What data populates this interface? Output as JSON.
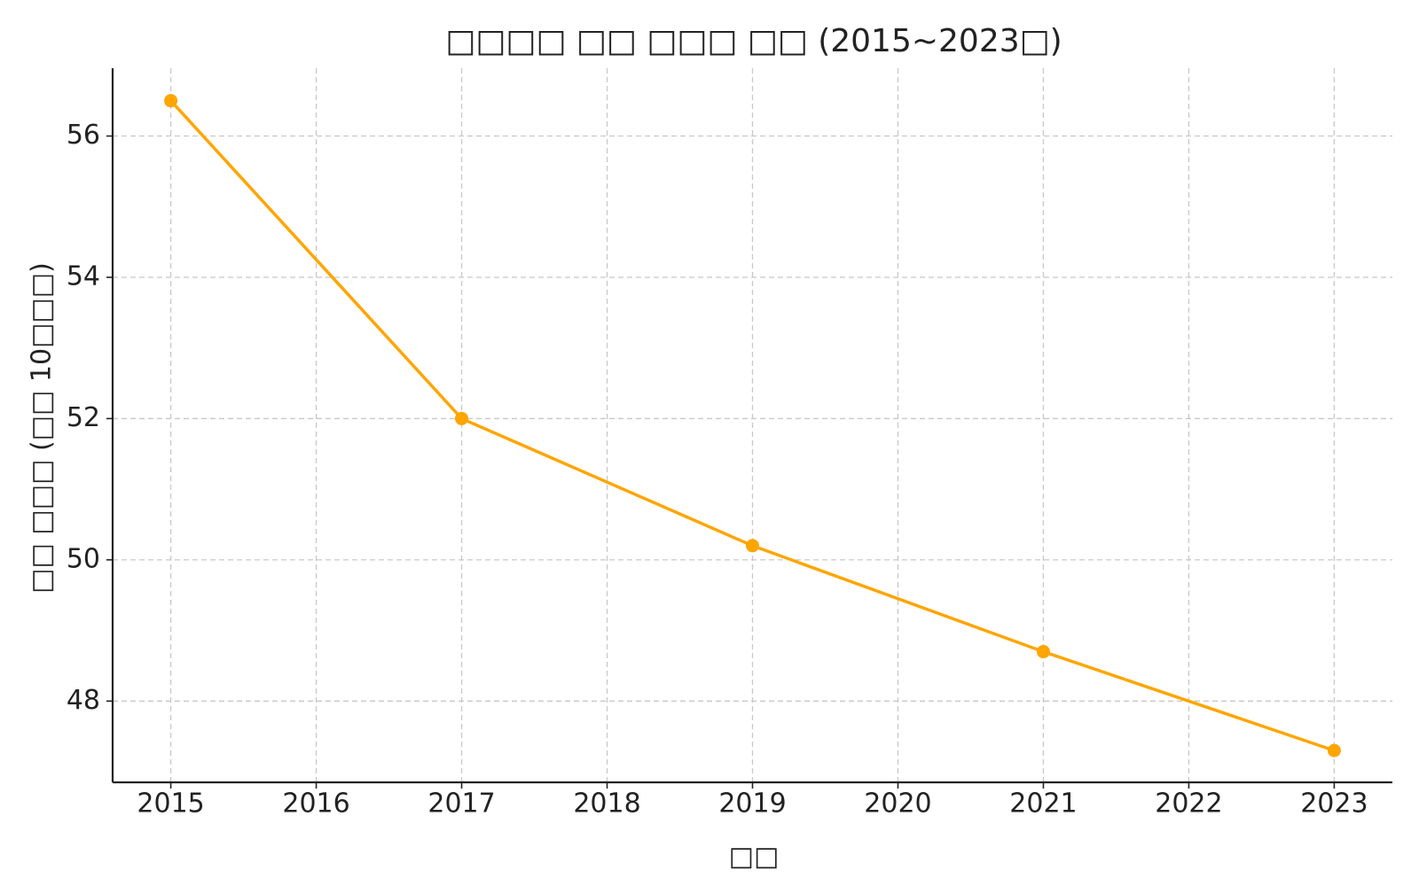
{
  "chart_data": {
    "type": "line",
    "title": "□□□□ □□ □□□ □□ (2015~2023□)",
    "x_label": "□□",
    "y_label": "□□ □□□ (□□ 10□□□)",
    "x": [
      2015,
      2017,
      2019,
      2021,
      2023
    ],
    "series": [
      {
        "name": "□□ □□□",
        "color": "#ffa500",
        "values": [
          56.5,
          52.0,
          50.2,
          48.7,
          47.3
        ]
      }
    ],
    "xlim": [
      2014.6,
      2023.4
    ],
    "xticks": [
      2015,
      2016,
      2017,
      2018,
      2019,
      2020,
      2021,
      2022,
      2023
    ],
    "ylim": [
      46.85,
      56.96
    ],
    "yticks": [
      48,
      50,
      52,
      54,
      56
    ],
    "grid": true
  }
}
